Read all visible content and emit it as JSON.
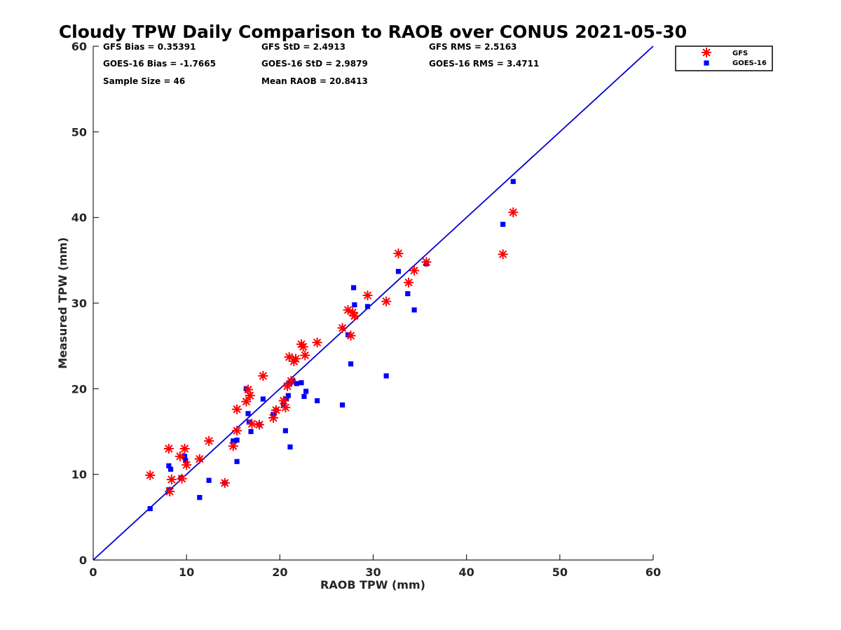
{
  "chart_data": {
    "type": "scatter",
    "title": "Cloudy TPW Daily Comparison to RAOB over CONUS 2021-05-30",
    "xlabel": "RAOB TPW (mm)",
    "ylabel": "Measured TPW (mm)",
    "xlim": [
      0,
      60
    ],
    "ylim": [
      0,
      60
    ],
    "xticks": [
      0,
      10,
      20,
      30,
      40,
      50,
      60
    ],
    "yticks": [
      0,
      10,
      20,
      30,
      40,
      50,
      60
    ],
    "grid": false,
    "legend_position": "top-right-outside",
    "stats": {
      "gfs_bias": "GFS Bias = 0.35391",
      "gfs_std": "GFS StD = 2.4913",
      "gfs_rms": "GFS RMS = 2.5163",
      "goes_bias": "GOES-16 Bias = -1.7665",
      "goes_std": "GOES-16 StD = 2.9879",
      "goes_rms": "GOES-16 RMS = 3.4711",
      "sample_size": "Sample Size = 46",
      "mean_raob": "Mean RAOB = 20.8413"
    },
    "reference_line": {
      "x": [
        0,
        60
      ],
      "y": [
        0,
        60
      ],
      "color": "#0000d0"
    },
    "series": [
      {
        "name": "GFS",
        "marker": "asterisk",
        "color": "#ff0000",
        "x": [
          6.1,
          8.1,
          8.2,
          8.4,
          9.3,
          9.5,
          9.8,
          10.0,
          12.4,
          11.4,
          14.1,
          15.0,
          15.4,
          15.4,
          16.4,
          16.6,
          16.8,
          17.0,
          17.8,
          18.2,
          19.3,
          19.6,
          20.4,
          20.6,
          20.8,
          21.0,
          21.2,
          21.5,
          21.7,
          22.3,
          22.5,
          22.7,
          24.0,
          26.7,
          27.3,
          27.8,
          28.0,
          27.6,
          29.4,
          31.4,
          32.7,
          33.8,
          34.4,
          35.7,
          43.9,
          45.0
        ],
        "y": [
          9.9,
          13.0,
          8.0,
          9.4,
          12.1,
          9.5,
          13.0,
          11.1,
          13.9,
          11.8,
          9.0,
          13.3,
          17.6,
          15.1,
          18.5,
          19.9,
          19.2,
          15.9,
          15.8,
          21.5,
          16.6,
          17.5,
          18.6,
          17.8,
          20.3,
          23.7,
          20.9,
          23.2,
          23.5,
          25.2,
          24.9,
          23.9,
          25.4,
          27.1,
          29.2,
          28.9,
          28.5,
          26.2,
          30.9,
          30.2,
          35.8,
          32.4,
          33.8,
          34.8,
          35.7,
          40.6
        ]
      },
      {
        "name": "GOES-16",
        "marker": "square",
        "color": "#0000ff",
        "x": [
          6.1,
          8.1,
          8.3,
          8.1,
          9.4,
          9.8,
          9.9,
          11.4,
          12.4,
          14.1,
          15.0,
          15.4,
          15.4,
          16.4,
          16.6,
          16.7,
          16.9,
          17.8,
          18.2,
          19.3,
          19.6,
          20.4,
          20.6,
          20.7,
          20.9,
          21.1,
          21.4,
          21.8,
          22.3,
          22.6,
          22.8,
          24.0,
          26.7,
          27.3,
          27.6,
          28.0,
          27.9,
          29.4,
          31.4,
          32.7,
          33.7,
          34.4,
          35.7,
          43.9,
          45.0,
          21.1
        ],
        "y": [
          6.0,
          11.0,
          10.6,
          8.2,
          9.6,
          12.1,
          11.6,
          7.3,
          9.3,
          9.0,
          13.9,
          11.5,
          14.0,
          20.0,
          17.1,
          16.1,
          15.0,
          15.8,
          18.8,
          17.0,
          17.5,
          18.2,
          15.1,
          18.8,
          19.2,
          13.2,
          20.9,
          20.6,
          20.7,
          19.1,
          19.7,
          18.6,
          18.1,
          26.3,
          22.9,
          29.8,
          31.8,
          29.6,
          21.5,
          33.7,
          31.1,
          29.2,
          34.6,
          39.2,
          44.2,
          20.7
        ]
      }
    ]
  }
}
